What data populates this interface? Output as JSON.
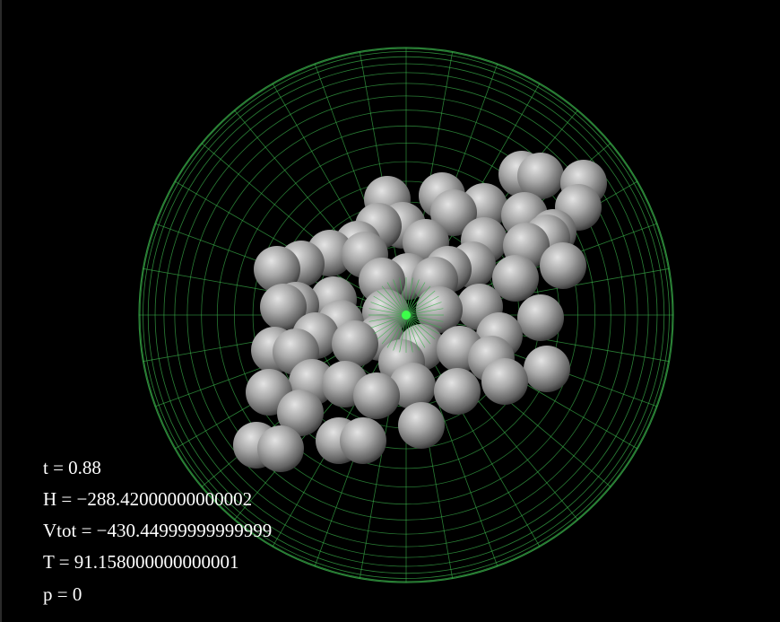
{
  "hud": {
    "t": "t = 0.88",
    "H": "H = −288.42000000000002",
    "Vtot": "Vtot = −430.44999999999999",
    "T": "T = 91.158000000000001",
    "p": "p = 0"
  },
  "colors": {
    "background": "#000000",
    "wireframe": "#3ab04a",
    "center_marker": "#3cff4a",
    "particle": "#9a9a9a",
    "text": "#ffffff"
  }
}
